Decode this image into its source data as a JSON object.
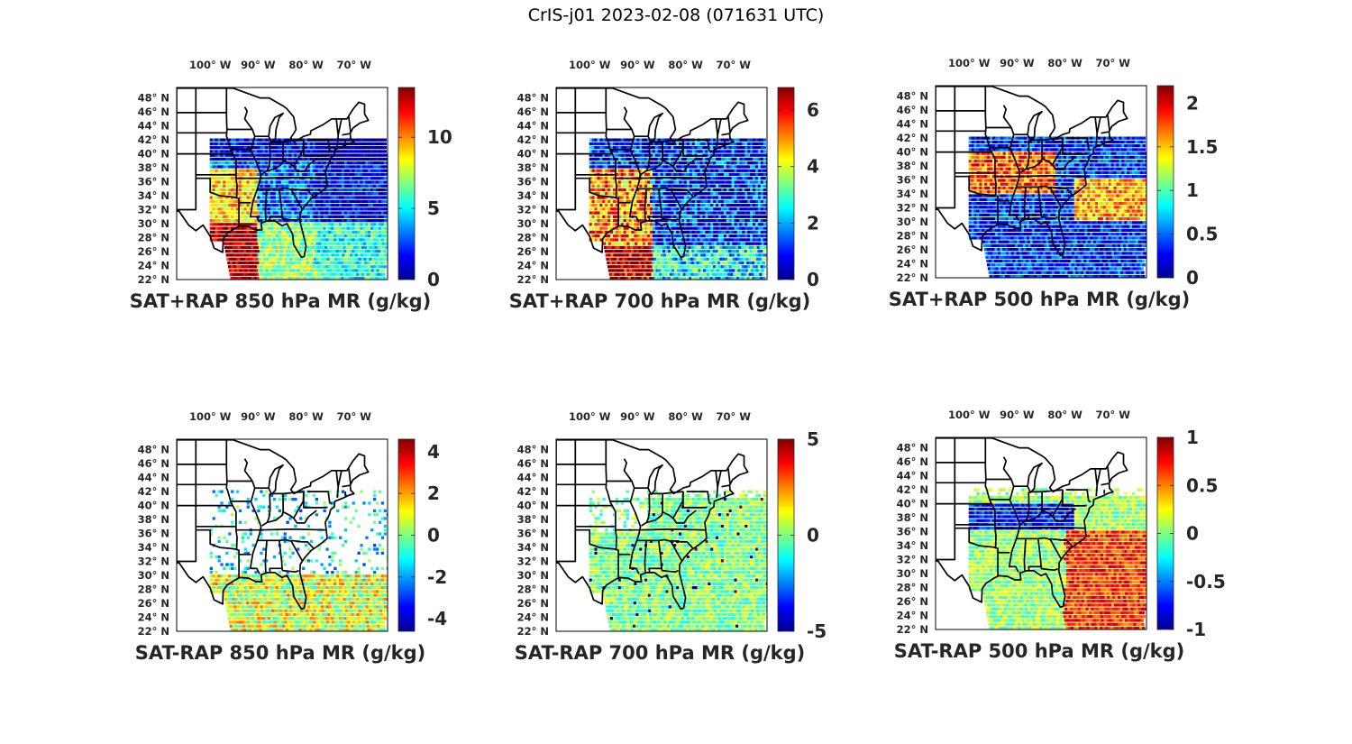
{
  "figure_title": "CrIS-j01 2023-02-08 (071631 UTC)",
  "colormap": [
    "#00008f",
    "#0000ff",
    "#0080ff",
    "#00ffff",
    "#80ff80",
    "#ffff00",
    "#ff8000",
    "#ff0000",
    "#800000"
  ],
  "map_labels": {
    "lon_ticks": [
      {
        "value": -100,
        "label": "100° W"
      },
      {
        "value": -90,
        "label": "90° W"
      },
      {
        "value": -80,
        "label": "80° W"
      },
      {
        "value": -70,
        "label": "70° W"
      }
    ],
    "lat_ticks": [
      {
        "value": 48,
        "label": "48° N"
      },
      {
        "value": 46,
        "label": "46° N"
      },
      {
        "value": 44,
        "label": "44° N"
      },
      {
        "value": 42,
        "label": "42° N"
      },
      {
        "value": 40,
        "label": "40° N"
      },
      {
        "value": 38,
        "label": "38° N"
      },
      {
        "value": 36,
        "label": "36° N"
      },
      {
        "value": 34,
        "label": "34° N"
      },
      {
        "value": 32,
        "label": "32° N"
      },
      {
        "value": 30,
        "label": "30° N"
      },
      {
        "value": 28,
        "label": "28° N"
      },
      {
        "value": 26,
        "label": "26° N"
      },
      {
        "value": 24,
        "label": "24° N"
      },
      {
        "value": 22,
        "label": "22° N"
      }
    ]
  },
  "panels": [
    {
      "title": "SAT+RAP 850 hPa MR (g/kg)",
      "clim": [
        0,
        13.5
      ],
      "ticks": [
        {
          "v": 0,
          "label": "0"
        },
        {
          "v": 5,
          "label": "5"
        },
        {
          "v": 10,
          "label": "10"
        }
      ]
    },
    {
      "title": "SAT+RAP 700 hPa MR (g/kg)",
      "clim": [
        0,
        6.8
      ],
      "ticks": [
        {
          "v": 0,
          "label": "0"
        },
        {
          "v": 2,
          "label": "2"
        },
        {
          "v": 4,
          "label": "4"
        },
        {
          "v": 6,
          "label": "6"
        }
      ]
    },
    {
      "title": "SAT+RAP 500 hPa MR (g/kg)",
      "clim": [
        0,
        2.2
      ],
      "ticks": [
        {
          "v": 0,
          "label": "0"
        },
        {
          "v": 0.5,
          "label": "0.5"
        },
        {
          "v": 1,
          "label": "1"
        },
        {
          "v": 1.5,
          "label": "1.5"
        },
        {
          "v": 2,
          "label": "2"
        }
      ]
    },
    {
      "title": "SAT-RAP 850 hPa MR (g/kg)",
      "clim": [
        -4.6,
        4.6
      ],
      "ticks": [
        {
          "v": -4,
          "label": "-4"
        },
        {
          "v": -2,
          "label": "-2"
        },
        {
          "v": 0,
          "label": "0"
        },
        {
          "v": 2,
          "label": "2"
        },
        {
          "v": 4,
          "label": "4"
        }
      ]
    },
    {
      "title": "SAT-RAP 700 hPa MR (g/kg)",
      "clim": [
        -5,
        5
      ],
      "ticks": [
        {
          "v": -5,
          "label": "-5"
        },
        {
          "v": 0,
          "label": "0"
        },
        {
          "v": 5,
          "label": "5"
        }
      ]
    },
    {
      "title": "SAT-RAP 500 hPa MR (g/kg)",
      "clim": [
        -1,
        1
      ],
      "ticks": [
        {
          "v": -1,
          "label": "-1"
        },
        {
          "v": -0.5,
          "label": "-0.5"
        },
        {
          "v": 0,
          "label": "0"
        },
        {
          "v": 0.5,
          "label": "0.5"
        },
        {
          "v": 1,
          "label": "1"
        }
      ]
    }
  ]
}
